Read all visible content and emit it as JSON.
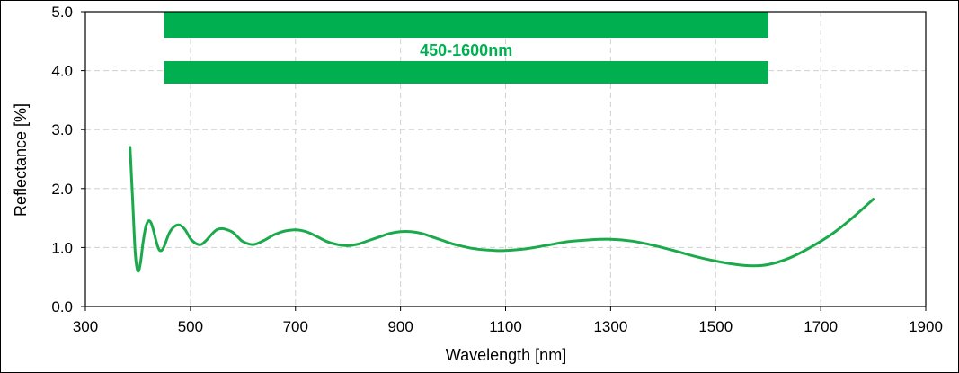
{
  "chart_data": {
    "type": "line",
    "title": "",
    "xlabel": "Wavelength [nm]",
    "ylabel": "Reflectance [%]",
    "xlim": [
      300,
      1900
    ],
    "ylim": [
      0,
      5
    ],
    "x_ticks": [
      300,
      500,
      700,
      900,
      1100,
      1300,
      1500,
      1700,
      1900
    ],
    "y_ticks": [
      "0.0",
      "1.0",
      "2.0",
      "3.0",
      "4.0",
      "5.0"
    ],
    "grid": true,
    "legend": "none",
    "colors": {
      "line": "#1aaa4b",
      "band": "#00b050",
      "band_label": "#00b050"
    },
    "band": {
      "label": "450-1600nm",
      "x_start": 450,
      "x_end": 1600
    },
    "series": [
      {
        "x": [
          385,
          390,
          395,
          400,
          405,
          410,
          415,
          420,
          425,
          430,
          435,
          440,
          445,
          450,
          460,
          470,
          480,
          490,
          500,
          510,
          520,
          530,
          540,
          550,
          560,
          570,
          580,
          590,
          600,
          620,
          640,
          660,
          680,
          700,
          720,
          740,
          760,
          780,
          800,
          820,
          840,
          860,
          880,
          900,
          920,
          940,
          960,
          980,
          1000,
          1040,
          1080,
          1100,
          1140,
          1180,
          1220,
          1260,
          1300,
          1340,
          1380,
          1420,
          1460,
          1500,
          1540,
          1570,
          1600,
          1640,
          1680,
          1720,
          1760,
          1800
        ],
        "values": [
          2.7,
          1.8,
          0.9,
          0.6,
          0.75,
          1.1,
          1.35,
          1.45,
          1.42,
          1.28,
          1.1,
          0.97,
          0.95,
          1.02,
          1.25,
          1.36,
          1.38,
          1.3,
          1.15,
          1.07,
          1.05,
          1.12,
          1.22,
          1.3,
          1.32,
          1.3,
          1.26,
          1.18,
          1.1,
          1.05,
          1.12,
          1.22,
          1.28,
          1.3,
          1.27,
          1.19,
          1.1,
          1.05,
          1.03,
          1.06,
          1.12,
          1.18,
          1.24,
          1.27,
          1.27,
          1.24,
          1.18,
          1.12,
          1.06,
          0.98,
          0.95,
          0.95,
          0.98,
          1.04,
          1.1,
          1.13,
          1.14,
          1.11,
          1.04,
          0.95,
          0.85,
          0.77,
          0.71,
          0.69,
          0.71,
          0.82,
          1.0,
          1.22,
          1.5,
          1.82
        ]
      }
    ]
  }
}
